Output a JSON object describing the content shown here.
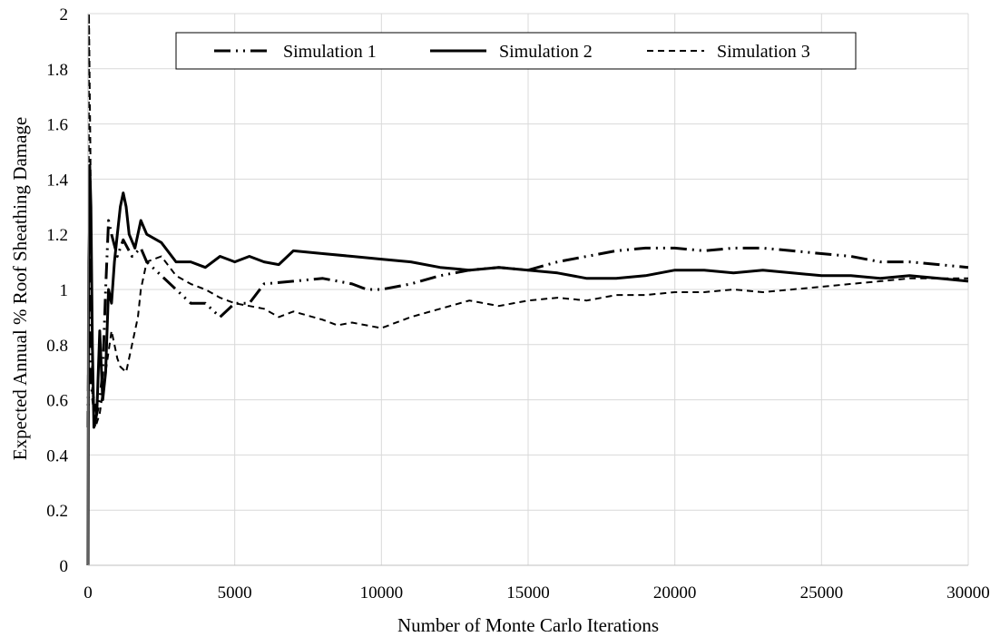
{
  "chart_data": {
    "type": "line",
    "xlabel": "Number of Monte Carlo Iterations",
    "ylabel": "Expected Annual % Roof Sheathing Damage",
    "xlim": [
      0,
      30000
    ],
    "ylim": [
      0,
      2
    ],
    "x_ticks": [
      0,
      5000,
      10000,
      15000,
      20000,
      25000,
      30000
    ],
    "y_ticks": [
      0,
      0.2,
      0.4,
      0.6,
      0.8,
      1,
      1.2,
      1.4,
      1.6,
      1.8,
      2
    ],
    "x_tick_labels": [
      "0",
      "5000",
      "10000",
      "15000",
      "20000",
      "25000",
      "30000"
    ],
    "y_tick_labels": [
      "0",
      "0.2",
      "0.4",
      "0.6",
      "0.8",
      "1",
      "1.2",
      "1.4",
      "1.6",
      "1.8",
      "2"
    ],
    "grid": "vertical and horizontal",
    "legend_position": "top-center",
    "series": [
      {
        "name": "Simulation 1",
        "line_style": "dash-dot-dot",
        "color": "#000000",
        "x": [
          0,
          50,
          100,
          200,
          300,
          400,
          500,
          600,
          700,
          800,
          1000,
          1200,
          1500,
          1800,
          2000,
          2500,
          3000,
          3500,
          4000,
          4500,
          5000,
          5500,
          6000,
          7000,
          8000,
          9000,
          9500,
          10000,
          11000,
          12000,
          13000,
          14000,
          15000,
          16000,
          17000,
          18000,
          19000,
          20000,
          21000,
          22000,
          23000,
          24000,
          25000,
          26000,
          27000,
          28000,
          29000,
          30000
        ],
        "y": [
          0.5,
          1.2,
          0.65,
          0.6,
          0.55,
          0.6,
          0.7,
          1.0,
          1.25,
          1.2,
          1.12,
          1.18,
          1.12,
          1.15,
          1.1,
          1.05,
          1.0,
          0.95,
          0.95,
          0.9,
          0.95,
          0.95,
          1.02,
          1.03,
          1.04,
          1.02,
          1.0,
          1.0,
          1.02,
          1.05,
          1.07,
          1.08,
          1.07,
          1.1,
          1.12,
          1.14,
          1.15,
          1.15,
          1.14,
          1.15,
          1.15,
          1.14,
          1.13,
          1.12,
          1.1,
          1.1,
          1.09,
          1.08
        ]
      },
      {
        "name": "Simulation 2",
        "line_style": "solid",
        "color": "#000000",
        "x": [
          0,
          20,
          60,
          100,
          150,
          200,
          300,
          400,
          500,
          600,
          700,
          800,
          900,
          1000,
          1100,
          1200,
          1300,
          1400,
          1600,
          1800,
          2000,
          2500,
          3000,
          3500,
          4000,
          4500,
          5000,
          5500,
          6000,
          6500,
          7000,
          8000,
          9000,
          10000,
          11000,
          12000,
          13000,
          14000,
          15000,
          16000,
          17000,
          18000,
          19000,
          20000,
          21000,
          22000,
          23000,
          24000,
          25000,
          26000,
          27000,
          28000,
          29000,
          30000
        ],
        "y": [
          0,
          1.1,
          1.45,
          1.3,
          0.8,
          0.5,
          0.55,
          0.85,
          0.6,
          0.7,
          1.0,
          0.95,
          1.1,
          1.2,
          1.3,
          1.35,
          1.3,
          1.2,
          1.15,
          1.25,
          1.2,
          1.17,
          1.1,
          1.1,
          1.08,
          1.12,
          1.1,
          1.12,
          1.1,
          1.09,
          1.14,
          1.13,
          1.12,
          1.11,
          1.1,
          1.08,
          1.07,
          1.08,
          1.07,
          1.06,
          1.04,
          1.04,
          1.05,
          1.07,
          1.07,
          1.06,
          1.07,
          1.06,
          1.05,
          1.05,
          1.04,
          1.05,
          1.04,
          1.03
        ]
      },
      {
        "name": "Simulation 3",
        "line_style": "dashed",
        "color": "#000000",
        "x": [
          0,
          30,
          80,
          150,
          250,
          400,
          600,
          800,
          1000,
          1100,
          1300,
          1500,
          1700,
          1800,
          2000,
          2500,
          3000,
          3500,
          4000,
          4500,
          5000,
          5500,
          6000,
          6500,
          7000,
          8000,
          8500,
          9000,
          10000,
          11000,
          12000,
          13000,
          14000,
          15000,
          16000,
          17000,
          18000,
          19000,
          20000,
          21000,
          22000,
          23000,
          24000,
          25000,
          26000,
          27000,
          28000,
          29000,
          30000
        ],
        "y": [
          0,
          2.0,
          1.5,
          0.6,
          0.5,
          0.55,
          0.7,
          0.85,
          0.75,
          0.72,
          0.7,
          0.8,
          0.9,
          1.0,
          1.1,
          1.12,
          1.05,
          1.02,
          1.0,
          0.97,
          0.95,
          0.94,
          0.93,
          0.9,
          0.92,
          0.89,
          0.87,
          0.88,
          0.86,
          0.9,
          0.93,
          0.96,
          0.94,
          0.96,
          0.97,
          0.96,
          0.98,
          0.98,
          0.99,
          0.99,
          1.0,
          0.99,
          1.0,
          1.01,
          1.02,
          1.03,
          1.04,
          1.04,
          1.04
        ]
      }
    ]
  }
}
